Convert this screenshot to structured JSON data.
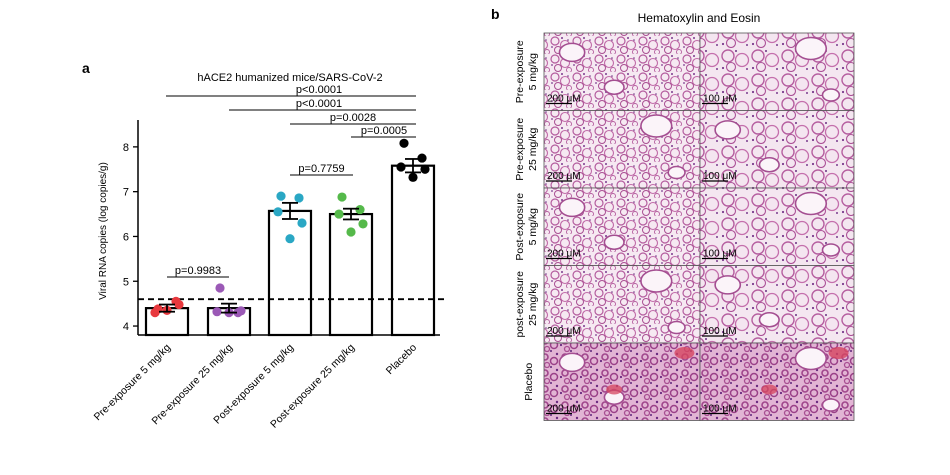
{
  "panel_a": {
    "letter": "a",
    "title": "hACE2 humanized mice/SARS-CoV-2",
    "ylabel": "Viral RNA copies (log copies/g)",
    "comparisons": [
      {
        "text": "p<0.0001",
        "from": 0,
        "to": 4
      },
      {
        "text": "p<0.0001",
        "from": 1,
        "to": 4
      },
      {
        "text": "p=0.0028",
        "from": 2,
        "to": 4
      },
      {
        "text": "p=0.0005",
        "from": 3,
        "to": 4
      },
      {
        "text": "p=0.7759",
        "from": 2,
        "to": 3
      },
      {
        "text": "p=0.9983",
        "from": 0,
        "to": 1
      }
    ]
  },
  "panel_b": {
    "letter": "b",
    "title": "Hematoxylin and Eosin",
    "rows": [
      {
        "label_line1": "Pre-exposure",
        "label_line2": "5 mg/kg",
        "scale_left": "200 μM",
        "scale_right": "100 μM"
      },
      {
        "label_line1": "Pre-exposure",
        "label_line2": "25 mg/kg",
        "scale_left": "200 μM",
        "scale_right": "100 μM"
      },
      {
        "label_line1": "Post-exposure",
        "label_line2": "5 mg/kg",
        "scale_left": "200 μM",
        "scale_right": "100 μM"
      },
      {
        "label_line1": "post-exposure",
        "label_line2": "25 mg/kg",
        "scale_left": "200 μM",
        "scale_right": "100 μM"
      },
      {
        "label_line1": "Placebo",
        "label_line2": "",
        "scale_left": "200 μM",
        "scale_right": "100 μM"
      }
    ]
  },
  "chart_data": {
    "type": "bar",
    "categories": [
      "Pre-exposure 5 mg/kg",
      "Pre-exposure 25 mg/kg",
      "Post-exposure 5 mg/kg",
      "Post-exposure 25 mg/kg",
      "Placebo"
    ],
    "values": [
      4.4,
      4.4,
      6.57,
      6.5,
      7.58
    ],
    "errors": [
      0.08,
      0.1,
      0.18,
      0.12,
      0.15
    ],
    "points": [
      [
        4.38,
        4.55,
        4.3,
        4.48,
        4.35
      ],
      [
        4.85,
        4.3,
        4.32,
        4.34,
        4.3
      ],
      [
        6.9,
        6.86,
        6.55,
        6.3,
        5.95
      ],
      [
        6.88,
        6.6,
        6.5,
        6.28,
        6.1
      ],
      [
        8.08,
        7.75,
        7.55,
        7.5,
        7.32
      ]
    ],
    "point_colors": [
      "#e8393e",
      "#9b59b6",
      "#2aa7c4",
      "#55b94a",
      "#000000"
    ],
    "ylim": [
      3.8,
      8.6
    ],
    "yticks": [
      4,
      5,
      6,
      7,
      8
    ],
    "threshold": 4.6
  }
}
